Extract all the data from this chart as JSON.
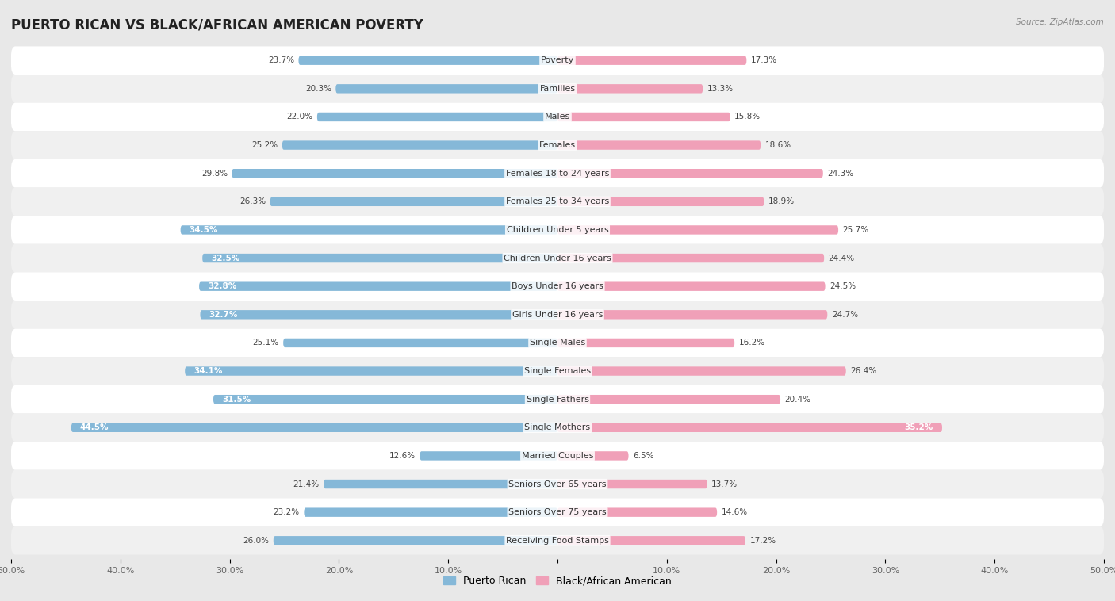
{
  "title": "PUERTO RICAN VS BLACK/AFRICAN AMERICAN POVERTY",
  "source": "Source: ZipAtlas.com",
  "categories": [
    "Poverty",
    "Families",
    "Males",
    "Females",
    "Females 18 to 24 years",
    "Females 25 to 34 years",
    "Children Under 5 years",
    "Children Under 16 years",
    "Boys Under 16 years",
    "Girls Under 16 years",
    "Single Males",
    "Single Females",
    "Single Fathers",
    "Single Mothers",
    "Married Couples",
    "Seniors Over 65 years",
    "Seniors Over 75 years",
    "Receiving Food Stamps"
  ],
  "puerto_rican": [
    23.7,
    20.3,
    22.0,
    25.2,
    29.8,
    26.3,
    34.5,
    32.5,
    32.8,
    32.7,
    25.1,
    34.1,
    31.5,
    44.5,
    12.6,
    21.4,
    23.2,
    26.0
  ],
  "black_african": [
    17.3,
    13.3,
    15.8,
    18.6,
    24.3,
    18.9,
    25.7,
    24.4,
    24.5,
    24.7,
    16.2,
    26.4,
    20.4,
    35.2,
    6.5,
    13.7,
    14.6,
    17.2
  ],
  "puerto_rican_color": "#85B8D8",
  "black_african_color": "#F0A0B8",
  "background_color": "#e8e8e8",
  "row_bg_color": "#f0f0f0",
  "row_white_color": "#ffffff",
  "title_fontsize": 12,
  "label_fontsize": 8,
  "value_fontsize": 7.5,
  "legend_labels": [
    "Puerto Rican",
    "Black/African American"
  ],
  "xlim_left": -50,
  "xlim_right": 50,
  "tick_positions": [
    -50,
    -40,
    -30,
    -20,
    -10,
    0,
    10,
    20,
    30,
    40,
    50
  ],
  "tick_labels": [
    "50.0%",
    "40.0%",
    "30.0%",
    "20.0%",
    "10.0%",
    "",
    "10.0%",
    "20.0%",
    "30.0%",
    "40.0%",
    "50.0%"
  ]
}
